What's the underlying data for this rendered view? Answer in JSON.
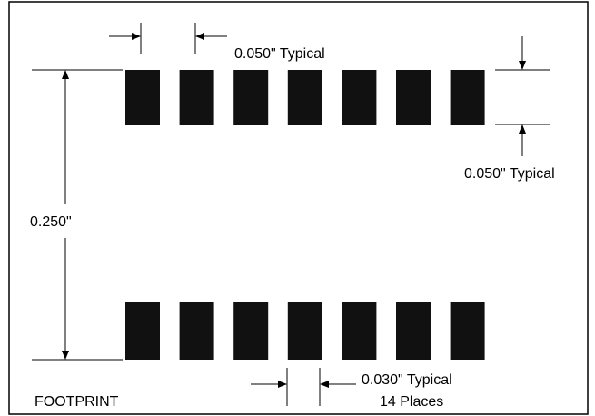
{
  "labels": {
    "pad_pitch": "0.050\" Typical",
    "pad_height": "0.050\" Typical",
    "row_spacing": "0.250\"",
    "pad_width": "0.030\" Typical",
    "places": "14 Places",
    "footprint": "FOOTPRINT"
  },
  "pads": {
    "per_row": 7,
    "rows": 2,
    "color": "#111111"
  }
}
